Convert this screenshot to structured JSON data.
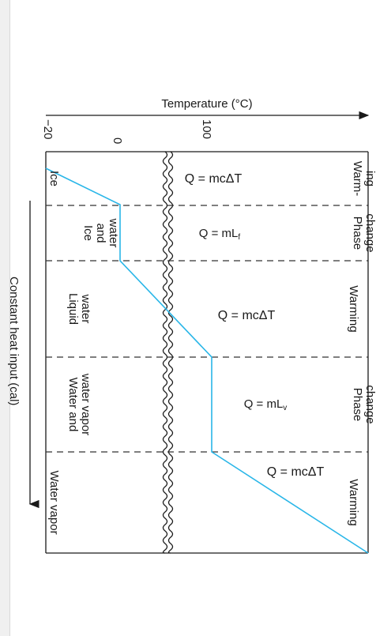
{
  "axis": {
    "temperature_label": "Temperature (°C)",
    "heat_label": "Constant heat input (cal)",
    "tick_labels": [
      "−20",
      "0",
      "100"
    ]
  },
  "columns": {
    "warming_ice": "Warm-\ning",
    "phase_melt": "Phase\nchange",
    "warming_water": "Warming",
    "phase_boil": "Phase\nchange",
    "warming_vapor": "Warming"
  },
  "equations": {
    "eq1": "Q = mcΔT",
    "eq2": "Q = mL",
    "eq2_sub": "f",
    "eq3": "Q = mcΔT",
    "eq4": "Q = mL",
    "eq4_sub": "v",
    "eq5": "Q = mcΔT"
  },
  "states": {
    "s1": "Ice",
    "s2": "Ice\nand\nwater",
    "s3": "Liquid\nwater",
    "s4": "Water and\nwater vapor",
    "s5": "Water vapor"
  },
  "colors": {
    "curve": "#29b6e8",
    "lines": "#1a1a1a",
    "divider_dash": "#333333"
  }
}
